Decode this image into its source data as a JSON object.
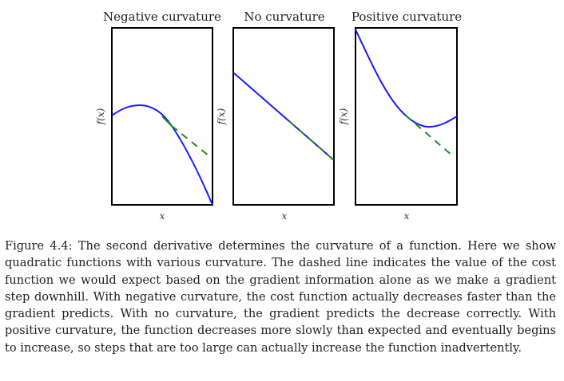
{
  "figure": {
    "panels": [
      {
        "title": "Negative curvature",
        "xlabel": "x",
        "ylabel": "f(x)",
        "function_color": "#1a1aff",
        "tangent_color": "#228b22"
      },
      {
        "title": "No curvature",
        "xlabel": "x",
        "ylabel": "f(x)",
        "function_color": "#1a1aff",
        "tangent_color": "#228b22"
      },
      {
        "title": "Positive curvature",
        "xlabel": "x",
        "ylabel": "f(x)",
        "function_color": "#1a1aff",
        "tangent_color": "#228b22"
      }
    ],
    "caption": "Figure 4.4: The second derivative determines the curvature of a function. Here we show quadratic functions with various curvature. The dashed line indicates the value of the cost function we would expect based on the gradient information alone as we make a gradient step downhill. With negative curvature, the cost function actually decreases faster than the gradient predicts. With no curvature, the gradient predicts the decrease correctly. With positive curvature, the function decreases more slowly than expected and eventually begins to increase, so steps that are too large can actually increase the function inadvertently."
  }
}
